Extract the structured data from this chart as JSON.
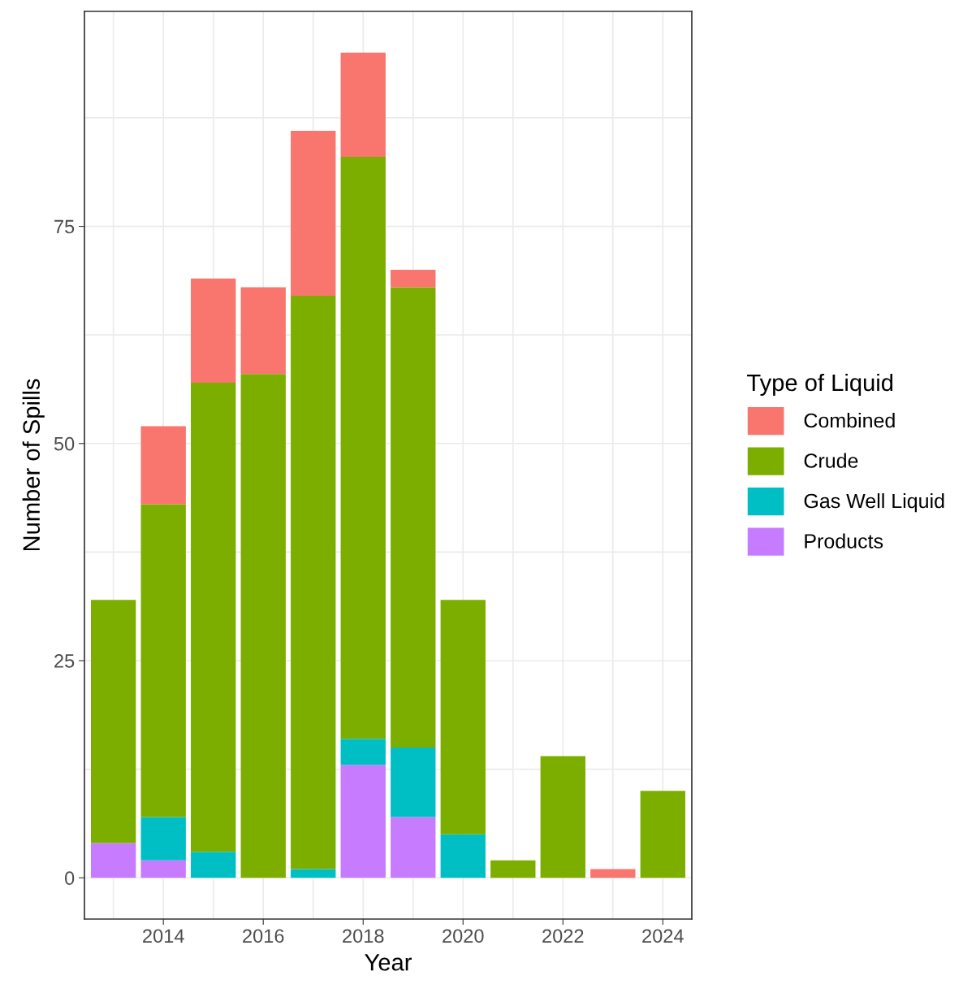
{
  "chart_data": {
    "type": "bar",
    "stacked": true,
    "xlabel": "Year",
    "ylabel": "Number of Spills",
    "legend_title": "Type of Liquid",
    "x": [
      2013,
      2014,
      2015,
      2016,
      2017,
      2018,
      2019,
      2020,
      2021,
      2022,
      2023,
      2024
    ],
    "series": [
      {
        "name": "Products",
        "color": "#c77cff",
        "values": [
          4,
          2,
          0,
          0,
          0,
          13,
          7,
          0,
          0,
          0,
          0,
          0
        ]
      },
      {
        "name": "Gas Well Liquid",
        "color": "#00bfc4",
        "values": [
          0,
          5,
          3,
          0,
          1,
          3,
          8,
          5,
          0,
          0,
          0,
          0
        ]
      },
      {
        "name": "Crude",
        "color": "#7cae00",
        "values": [
          28,
          36,
          54,
          58,
          66,
          67,
          53,
          27,
          2,
          14,
          0,
          10
        ]
      },
      {
        "name": "Combined",
        "color": "#f8766d",
        "values": [
          0,
          9,
          12,
          10,
          19,
          12,
          2,
          0,
          0,
          0,
          1,
          0
        ]
      }
    ],
    "xlim": [
      2012.42,
      2024.58
    ],
    "xticks": [
      2014,
      2016,
      2018,
      2020,
      2022,
      2024
    ],
    "ylim": [
      -4.75,
      99.75
    ],
    "yticks": [
      0,
      25,
      50,
      75
    ],
    "grid": true,
    "legend": "right"
  }
}
